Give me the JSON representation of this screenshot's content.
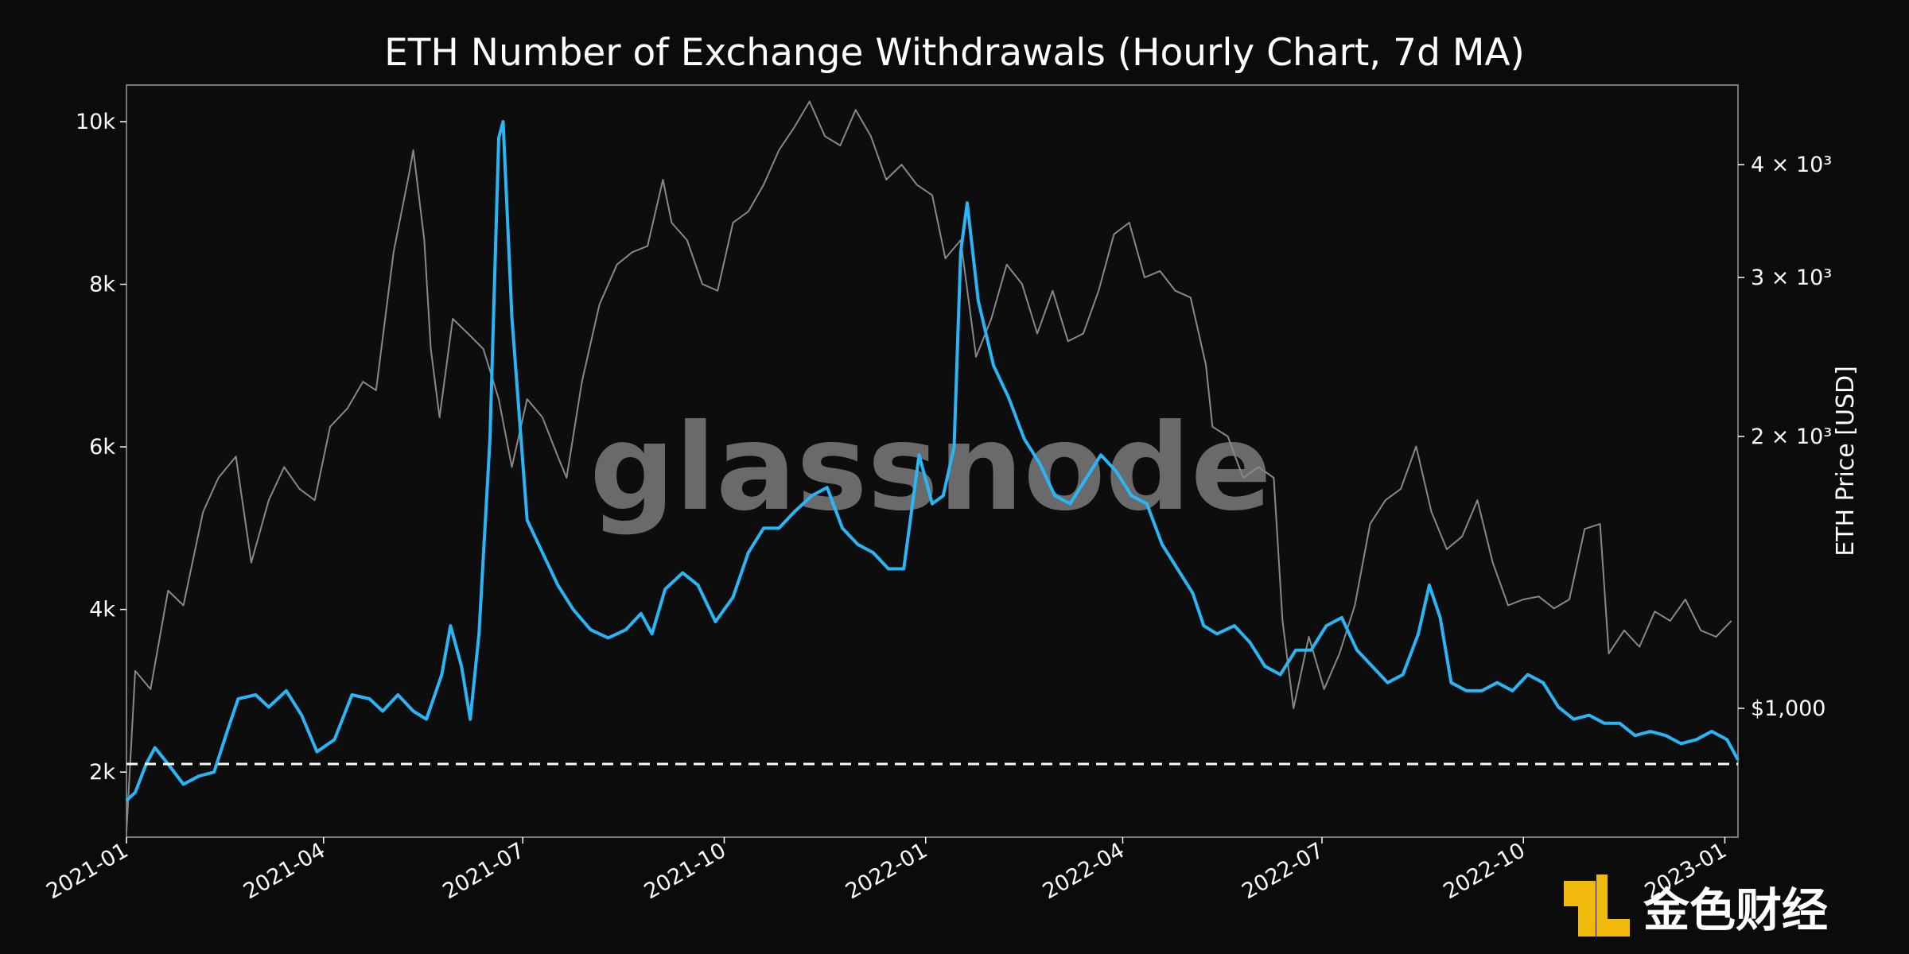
{
  "chart_data": {
    "type": "line",
    "title": "ETH Number of Exchange Withdrawals (Hourly Chart, 7d MA)",
    "xlabel": "",
    "ylabel": "",
    "y2label": "ETH Price [USD]",
    "x_ticks": [
      "2021-01",
      "2021-04",
      "2021-07",
      "2021-10",
      "2022-01",
      "2022-04",
      "2022-07",
      "2022-10",
      "2023-01"
    ],
    "y_ticks": [
      "2k",
      "4k",
      "6k",
      "8k",
      "10k"
    ],
    "y_tick_values": [
      2000,
      4000,
      6000,
      8000,
      10000
    ],
    "y2_ticks": [
      "$1,000",
      "2 × 10³",
      "3 × 10³",
      "4 × 10³"
    ],
    "y2_tick_values": [
      1000,
      2000,
      3000,
      4000
    ],
    "xlim": [
      "2021-01-01",
      "2023-01-07"
    ],
    "ylim": [
      1200,
      10450
    ],
    "y2lim": [
      720,
      4900
    ],
    "y2_scale": "log",
    "grid": false,
    "reference_line": {
      "y": 2100,
      "style": "dashed",
      "color": "#ffffff"
    },
    "series": [
      {
        "axis": "left",
        "color": "#29b6f6",
        "points": [
          [
            "2021-01-01",
            1650
          ],
          [
            "2021-01-05",
            1750
          ],
          [
            "2021-01-10",
            2100
          ],
          [
            "2021-01-14",
            2300
          ],
          [
            "2021-01-20",
            2100
          ],
          [
            "2021-01-27",
            1850
          ],
          [
            "2021-02-03",
            1950
          ],
          [
            "2021-02-10",
            2000
          ],
          [
            "2021-02-16",
            2500
          ],
          [
            "2021-02-21",
            2900
          ],
          [
            "2021-03-01",
            2950
          ],
          [
            "2021-03-07",
            2800
          ],
          [
            "2021-03-15",
            3000
          ],
          [
            "2021-03-22",
            2700
          ],
          [
            "2021-03-29",
            2250
          ],
          [
            "2021-04-06",
            2400
          ],
          [
            "2021-04-14",
            2950
          ],
          [
            "2021-04-22",
            2900
          ],
          [
            "2021-04-28",
            2750
          ],
          [
            "2021-05-05",
            2950
          ],
          [
            "2021-05-12",
            2750
          ],
          [
            "2021-05-18",
            2650
          ],
          [
            "2021-05-25",
            3200
          ],
          [
            "2021-05-29",
            3800
          ],
          [
            "2021-06-03",
            3300
          ],
          [
            "2021-06-07",
            2650
          ],
          [
            "2021-06-11",
            3700
          ],
          [
            "2021-06-16",
            6100
          ],
          [
            "2021-06-20",
            9800
          ],
          [
            "2021-06-22",
            10000
          ],
          [
            "2021-06-26",
            7600
          ],
          [
            "2021-07-03",
            5100
          ],
          [
            "2021-07-10",
            4700
          ],
          [
            "2021-07-17",
            4300
          ],
          [
            "2021-07-24",
            4000
          ],
          [
            "2021-08-01",
            3750
          ],
          [
            "2021-08-09",
            3650
          ],
          [
            "2021-08-17",
            3750
          ],
          [
            "2021-08-24",
            3950
          ],
          [
            "2021-08-29",
            3700
          ],
          [
            "2021-09-04",
            4250
          ],
          [
            "2021-09-12",
            4450
          ],
          [
            "2021-09-19",
            4300
          ],
          [
            "2021-09-27",
            3850
          ],
          [
            "2021-10-05",
            4150
          ],
          [
            "2021-10-12",
            4700
          ],
          [
            "2021-10-19",
            5000
          ],
          [
            "2021-10-26",
            5000
          ],
          [
            "2021-11-02",
            5200
          ],
          [
            "2021-11-10",
            5400
          ],
          [
            "2021-11-17",
            5500
          ],
          [
            "2021-11-24",
            5000
          ],
          [
            "2021-12-01",
            4800
          ],
          [
            "2021-12-08",
            4700
          ],
          [
            "2021-12-15",
            4500
          ],
          [
            "2021-12-22",
            4500
          ],
          [
            "2021-12-29",
            5900
          ],
          [
            "2022-01-04",
            5300
          ],
          [
            "2022-01-09",
            5400
          ],
          [
            "2022-01-14",
            6000
          ],
          [
            "2022-01-17",
            8400
          ],
          [
            "2022-01-20",
            9000
          ],
          [
            "2022-01-25",
            7800
          ],
          [
            "2022-02-01",
            7000
          ],
          [
            "2022-02-08",
            6600
          ],
          [
            "2022-02-15",
            6100
          ],
          [
            "2022-02-22",
            5800
          ],
          [
            "2022-03-01",
            5400
          ],
          [
            "2022-03-08",
            5300
          ],
          [
            "2022-03-15",
            5600
          ],
          [
            "2022-03-22",
            5900
          ],
          [
            "2022-03-29",
            5700
          ],
          [
            "2022-04-05",
            5400
          ],
          [
            "2022-04-12",
            5300
          ],
          [
            "2022-04-19",
            4800
          ],
          [
            "2022-04-26",
            4500
          ],
          [
            "2022-05-03",
            4200
          ],
          [
            "2022-05-08",
            3800
          ],
          [
            "2022-05-14",
            3700
          ],
          [
            "2022-05-22",
            3800
          ],
          [
            "2022-05-29",
            3600
          ],
          [
            "2022-06-05",
            3300
          ],
          [
            "2022-06-12",
            3200
          ],
          [
            "2022-06-19",
            3500
          ],
          [
            "2022-06-26",
            3500
          ],
          [
            "2022-07-03",
            3800
          ],
          [
            "2022-07-10",
            3900
          ],
          [
            "2022-07-17",
            3500
          ],
          [
            "2022-07-24",
            3300
          ],
          [
            "2022-07-31",
            3100
          ],
          [
            "2022-08-07",
            3200
          ],
          [
            "2022-08-14",
            3700
          ],
          [
            "2022-08-19",
            4300
          ],
          [
            "2022-08-24",
            3900
          ],
          [
            "2022-08-29",
            3100
          ],
          [
            "2022-09-05",
            3000
          ],
          [
            "2022-09-12",
            3000
          ],
          [
            "2022-09-19",
            3100
          ],
          [
            "2022-09-26",
            3000
          ],
          [
            "2022-10-03",
            3200
          ],
          [
            "2022-10-10",
            3100
          ],
          [
            "2022-10-17",
            2800
          ],
          [
            "2022-10-24",
            2650
          ],
          [
            "2022-10-31",
            2700
          ],
          [
            "2022-11-07",
            2600
          ],
          [
            "2022-11-14",
            2600
          ],
          [
            "2022-11-21",
            2450
          ],
          [
            "2022-11-28",
            2500
          ],
          [
            "2022-12-05",
            2450
          ],
          [
            "2022-12-12",
            2350
          ],
          [
            "2022-12-19",
            2400
          ],
          [
            "2022-12-26",
            2500
          ],
          [
            "2023-01-02",
            2400
          ],
          [
            "2023-01-07",
            2150
          ]
        ]
      },
      {
        "axis": "right",
        "color": "#888888",
        "points": [
          [
            "2021-01-01",
            730
          ],
          [
            "2021-01-05",
            1100
          ],
          [
            "2021-01-12",
            1050
          ],
          [
            "2021-01-20",
            1350
          ],
          [
            "2021-01-27",
            1300
          ],
          [
            "2021-02-05",
            1650
          ],
          [
            "2021-02-12",
            1800
          ],
          [
            "2021-02-20",
            1900
          ],
          [
            "2021-02-27",
            1450
          ],
          [
            "2021-03-07",
            1700
          ],
          [
            "2021-03-14",
            1850
          ],
          [
            "2021-03-21",
            1750
          ],
          [
            "2021-03-28",
            1700
          ],
          [
            "2021-04-04",
            2050
          ],
          [
            "2021-04-12",
            2150
          ],
          [
            "2021-04-19",
            2300
          ],
          [
            "2021-04-25",
            2250
          ],
          [
            "2021-05-03",
            3200
          ],
          [
            "2021-05-10",
            3900
          ],
          [
            "2021-05-12",
            4150
          ],
          [
            "2021-05-17",
            3300
          ],
          [
            "2021-05-20",
            2500
          ],
          [
            "2021-05-24",
            2100
          ],
          [
            "2021-05-30",
            2700
          ],
          [
            "2021-06-06",
            2600
          ],
          [
            "2021-06-13",
            2500
          ],
          [
            "2021-06-20",
            2200
          ],
          [
            "2021-06-26",
            1850
          ],
          [
            "2021-07-03",
            2200
          ],
          [
            "2021-07-10",
            2100
          ],
          [
            "2021-07-17",
            1900
          ],
          [
            "2021-07-21",
            1800
          ],
          [
            "2021-07-28",
            2300
          ],
          [
            "2021-08-05",
            2800
          ],
          [
            "2021-08-13",
            3100
          ],
          [
            "2021-08-20",
            3200
          ],
          [
            "2021-08-27",
            3250
          ],
          [
            "2021-09-03",
            3850
          ],
          [
            "2021-09-07",
            3450
          ],
          [
            "2021-09-14",
            3300
          ],
          [
            "2021-09-21",
            2950
          ],
          [
            "2021-09-28",
            2900
          ],
          [
            "2021-10-05",
            3450
          ],
          [
            "2021-10-12",
            3550
          ],
          [
            "2021-10-19",
            3800
          ],
          [
            "2021-10-26",
            4150
          ],
          [
            "2021-11-02",
            4400
          ],
          [
            "2021-11-09",
            4700
          ],
          [
            "2021-11-16",
            4300
          ],
          [
            "2021-11-23",
            4200
          ],
          [
            "2021-11-30",
            4600
          ],
          [
            "2021-12-07",
            4300
          ],
          [
            "2021-12-14",
            3850
          ],
          [
            "2021-12-21",
            4000
          ],
          [
            "2021-12-28",
            3800
          ],
          [
            "2022-01-04",
            3700
          ],
          [
            "2022-01-10",
            3150
          ],
          [
            "2022-01-17",
            3300
          ],
          [
            "2022-01-24",
            2450
          ],
          [
            "2022-01-31",
            2700
          ],
          [
            "2022-02-07",
            3100
          ],
          [
            "2022-02-14",
            2950
          ],
          [
            "2022-02-21",
            2600
          ],
          [
            "2022-02-28",
            2900
          ],
          [
            "2022-03-07",
            2550
          ],
          [
            "2022-03-14",
            2600
          ],
          [
            "2022-03-21",
            2900
          ],
          [
            "2022-03-28",
            3350
          ],
          [
            "2022-04-04",
            3450
          ],
          [
            "2022-04-11",
            3000
          ],
          [
            "2022-04-18",
            3050
          ],
          [
            "2022-04-25",
            2900
          ],
          [
            "2022-05-02",
            2850
          ],
          [
            "2022-05-09",
            2400
          ],
          [
            "2022-05-12",
            2050
          ],
          [
            "2022-05-19",
            2000
          ],
          [
            "2022-05-26",
            1800
          ],
          [
            "2022-06-02",
            1850
          ],
          [
            "2022-06-09",
            1800
          ],
          [
            "2022-06-13",
            1250
          ],
          [
            "2022-06-18",
            1000
          ],
          [
            "2022-06-25",
            1200
          ],
          [
            "2022-07-02",
            1050
          ],
          [
            "2022-07-09",
            1150
          ],
          [
            "2022-07-16",
            1300
          ],
          [
            "2022-07-23",
            1600
          ],
          [
            "2022-07-30",
            1700
          ],
          [
            "2022-08-06",
            1750
          ],
          [
            "2022-08-13",
            1950
          ],
          [
            "2022-08-20",
            1650
          ],
          [
            "2022-08-27",
            1500
          ],
          [
            "2022-09-03",
            1550
          ],
          [
            "2022-09-10",
            1700
          ],
          [
            "2022-09-17",
            1450
          ],
          [
            "2022-09-24",
            1300
          ],
          [
            "2022-10-01",
            1320
          ],
          [
            "2022-10-08",
            1330
          ],
          [
            "2022-10-15",
            1290
          ],
          [
            "2022-10-22",
            1320
          ],
          [
            "2022-10-29",
            1580
          ],
          [
            "2022-11-05",
            1600
          ],
          [
            "2022-11-09",
            1150
          ],
          [
            "2022-11-16",
            1220
          ],
          [
            "2022-11-23",
            1170
          ],
          [
            "2022-11-30",
            1280
          ],
          [
            "2022-12-07",
            1250
          ],
          [
            "2022-12-14",
            1320
          ],
          [
            "2022-12-21",
            1220
          ],
          [
            "2022-12-28",
            1200
          ],
          [
            "2023-01-04",
            1250
          ]
        ]
      }
    ]
  },
  "watermark": "glassnode",
  "logo": {
    "text": "金色财经"
  }
}
